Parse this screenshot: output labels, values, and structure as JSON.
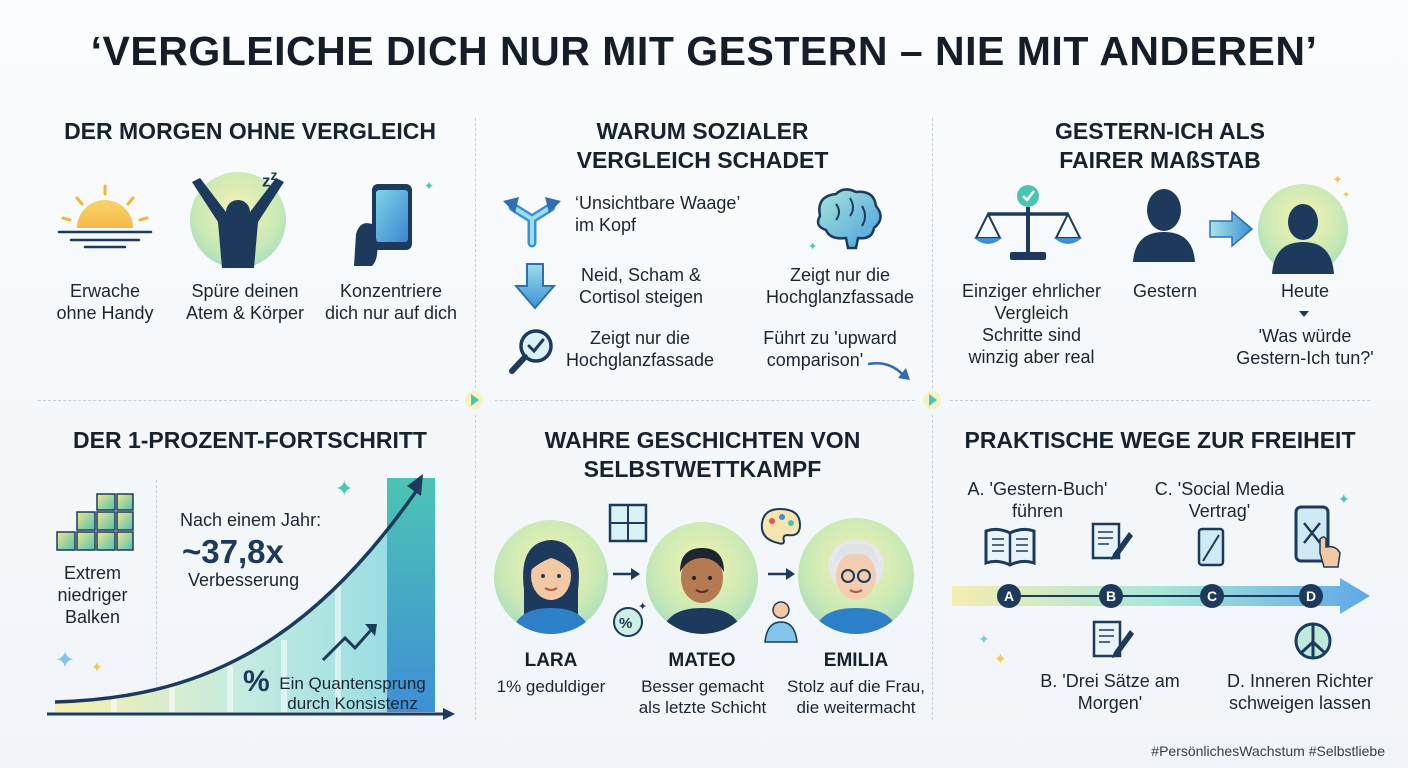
{
  "title": "‘VERGLEICHE DICH NUR MIT GESTERN – NIE MIT ANDEREN’",
  "panel1": {
    "heading": "DER MORGEN OHNE VERGLEICH",
    "items": [
      {
        "label1": "Erwache",
        "label2": "ohne Handy",
        "icon": "sunrise-icon"
      },
      {
        "label1": "Spüre deinen",
        "label2": "Atem & Körper",
        "icon": "breathing-person-icon"
      },
      {
        "label1": "Konzentriere",
        "label2": "dich nur auf dich",
        "icon": "phone-hand-icon"
      }
    ]
  },
  "panel2": {
    "heading1": "WARUM SOZIALER",
    "heading2": "VERGLEICH SCHADET",
    "items": [
      {
        "line1": "‘Unsichtbare Waage’",
        "line2": "im Kopf",
        "icon": "split-arrow-icon"
      },
      {
        "line1": "Neid, Scham &",
        "line2": "Cortisol steigen",
        "icon": "down-arrow-icon"
      },
      {
        "line1": "Zeigt nur die",
        "line2": "Hochglanzfassade",
        "icon": "brain-icon"
      },
      {
        "line1": "Zeigt nur die",
        "line2": "Hochglanzfassade",
        "icon": "magnifier-check-icon"
      },
      {
        "line1": "Führt zu 'upward",
        "line2": "comparison'",
        "icon": "curved-arrow-icon"
      }
    ]
  },
  "panel3": {
    "heading1": "GESTERN-ICH ALS",
    "heading2": "FAIRER MAßSTAB",
    "scale_line1": "Einziger ehrlicher",
    "scale_line2": "Vergleich",
    "steps_line1": "Schritte sind",
    "steps_line2": "winzig aber real",
    "gestern": "Gestern",
    "heute": "Heute",
    "question_line1": "'Was würde",
    "question_line2": "Gestern-Ich tun?'"
  },
  "panel4": {
    "heading": "DER 1-PROZENT-FORTSCHRITT",
    "low_bar_line1": "Extrem",
    "low_bar_line2": "niedriger",
    "low_bar_line3": "Balken",
    "after_year": "Nach einem Jahr:",
    "multiplier": "~37,8x",
    "improvement": "Verbesserung",
    "percent_symbol": "%",
    "quantum_line1": "Ein Quantensprung",
    "quantum_line2": "durch Konsistenz"
  },
  "panel5": {
    "heading1": "WAHRE GESCHICHTEN VON",
    "heading2": "SELBSTWETTKAMPF",
    "people": [
      {
        "name": "LARA",
        "line1": "1% geduldiger",
        "line2": ""
      },
      {
        "name": "MATEO",
        "line1": "Besser gemacht",
        "line2": "als letzte Schicht"
      },
      {
        "name": "EMILIA",
        "line1": "Stolz auf die Frau,",
        "line2": "die weitermacht"
      }
    ]
  },
  "panel6": {
    "heading": "PRAKTISCHE WEGE ZUR FREIHEIT",
    "a_line1": "A. 'Gestern-Buch'",
    "a_line2": "führen",
    "c_line1": "C. 'Social Media",
    "c_line2": "Vertrag'",
    "b_line1": "B. 'Drei Sätze am",
    "b_line2": "Morgen'",
    "d_line1": "D. Inneren Richter",
    "d_line2": "schweigen lassen",
    "nodes": [
      "A",
      "B",
      "C",
      "D"
    ]
  },
  "hashtags": "#PersönlichesWachstum #Selbstliebe",
  "colors": {
    "navy": "#1d3a5c",
    "teal": "#4cc4b4",
    "blue": "#3f8fd6",
    "yellow": "#f4d35e"
  }
}
